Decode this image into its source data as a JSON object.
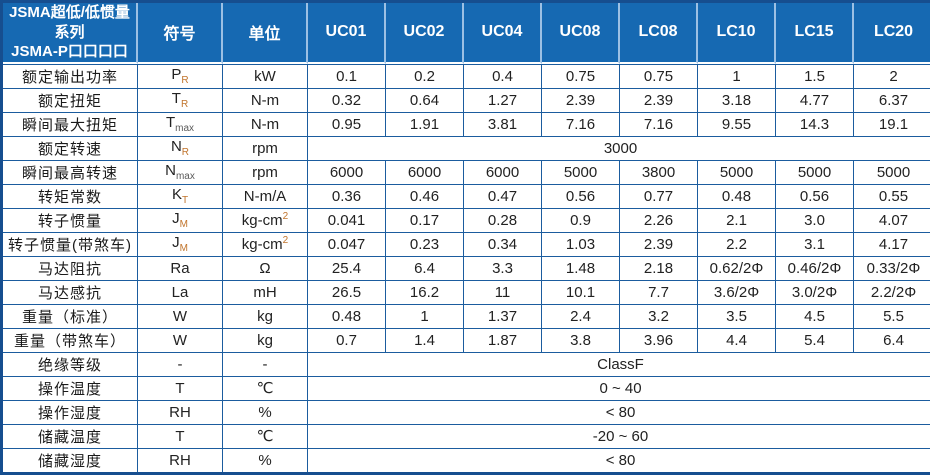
{
  "colors": {
    "header_bg": "#1669b2",
    "header_divider": "#9cc0e4",
    "grid_line": "#1b5c9e",
    "outer_border": "#164e8f",
    "header_text": "#ffffff",
    "body_text": "#222222",
    "subscript_accent": "#c1742c"
  },
  "header": {
    "title_line1": "JSMA超低/低惯量系列",
    "title_line2": "JSMA-P口口口口",
    "symbol_col": "符号",
    "unit_col": "单位",
    "models": [
      "UC01",
      "UC02",
      "UC04",
      "UC08",
      "LC08",
      "LC10",
      "LC15",
      "LC20"
    ]
  },
  "rows": [
    {
      "label": "额定输出功率",
      "symbol": "P",
      "sub": "R",
      "unit": "kW",
      "unit_sup": "",
      "values": [
        "0.1",
        "0.2",
        "0.4",
        "0.75",
        "0.75",
        "1",
        "1.5",
        "2"
      ]
    },
    {
      "label": "额定扭矩",
      "symbol": "T",
      "sub": "R",
      "unit": "N-m",
      "unit_sup": "",
      "values": [
        "0.32",
        "0.64",
        "1.27",
        "2.39",
        "2.39",
        "3.18",
        "4.77",
        "6.37"
      ]
    },
    {
      "label": "瞬间最大扭矩",
      "symbol": "T",
      "sub": "max",
      "unit": "N-m",
      "unit_sup": "",
      "values": [
        "0.95",
        "1.91",
        "3.81",
        "7.16",
        "7.16",
        "9.55",
        "14.3",
        "19.1"
      ]
    },
    {
      "label": "额定转速",
      "symbol": "N",
      "sub": "R",
      "unit": "rpm",
      "unit_sup": "",
      "span": "3000"
    },
    {
      "label": "瞬间最高转速",
      "symbol": "N",
      "sub": "max",
      "unit": "rpm",
      "unit_sup": "",
      "values": [
        "6000",
        "6000",
        "6000",
        "5000",
        "3800",
        "5000",
        "5000",
        "5000"
      ]
    },
    {
      "label": "转矩常数",
      "symbol": "K",
      "sub": "T",
      "unit": "N-m/A",
      "unit_sup": "",
      "values": [
        "0.36",
        "0.46",
        "0.47",
        "0.56",
        "0.77",
        "0.48",
        "0.56",
        "0.55"
      ]
    },
    {
      "label": "转子惯量",
      "symbol": "J",
      "sub": "M",
      "unit": "kg-cm",
      "unit_sup": "2",
      "values": [
        "0.041",
        "0.17",
        "0.28",
        "0.9",
        "2.26",
        "2.1",
        "3.0",
        "4.07"
      ]
    },
    {
      "label": "转子惯量(带煞车)",
      "symbol": "J",
      "sub": "M",
      "unit": "kg-cm",
      "unit_sup": "2",
      "values": [
        "0.047",
        "0.23",
        "0.34",
        "1.03",
        "2.39",
        "2.2",
        "3.1",
        "4.17"
      ]
    },
    {
      "label": "马达阻抗",
      "symbol": "Ra",
      "sub": "",
      "unit": "Ω",
      "unit_sup": "",
      "values": [
        "25.4",
        "6.4",
        "3.3",
        "1.48",
        "2.18",
        "0.62/2Φ",
        "0.46/2Φ",
        "0.33/2Φ"
      ]
    },
    {
      "label": "马达感抗",
      "symbol": "La",
      "sub": "",
      "unit": "mH",
      "unit_sup": "",
      "values": [
        "26.5",
        "16.2",
        "11",
        "10.1",
        "7.7",
        "3.6/2Φ",
        "3.0/2Φ",
        "2.2/2Φ"
      ]
    },
    {
      "label": "重量（标准）",
      "symbol": "W",
      "sub": "",
      "unit": "kg",
      "unit_sup": "",
      "values": [
        "0.48",
        "1",
        "1.37",
        "2.4",
        "3.2",
        "3.5",
        "4.5",
        "5.5"
      ]
    },
    {
      "label": "重量（带煞车）",
      "symbol": "W",
      "sub": "",
      "unit": "kg",
      "unit_sup": "",
      "values": [
        "0.7",
        "1.4",
        "1.87",
        "3.8",
        "3.96",
        "4.4",
        "5.4",
        "6.4"
      ]
    },
    {
      "label": "绝缘等级",
      "symbol": "-",
      "sub": "",
      "unit": "-",
      "unit_sup": "",
      "span": "ClassF"
    },
    {
      "label": "操作温度",
      "symbol": "T",
      "sub": "",
      "unit": "℃",
      "unit_sup": "",
      "span": "0 ~ 40"
    },
    {
      "label": "操作湿度",
      "symbol": "RH",
      "sub": "",
      "unit": "%",
      "unit_sup": "",
      "span": "< 80"
    },
    {
      "label": "储藏温度",
      "symbol": "T",
      "sub": "",
      "unit": "℃",
      "unit_sup": "",
      "span": "-20 ~ 60"
    },
    {
      "label": "储藏湿度",
      "symbol": "RH",
      "sub": "",
      "unit": "%",
      "unit_sup": "",
      "span": "< 80"
    }
  ]
}
